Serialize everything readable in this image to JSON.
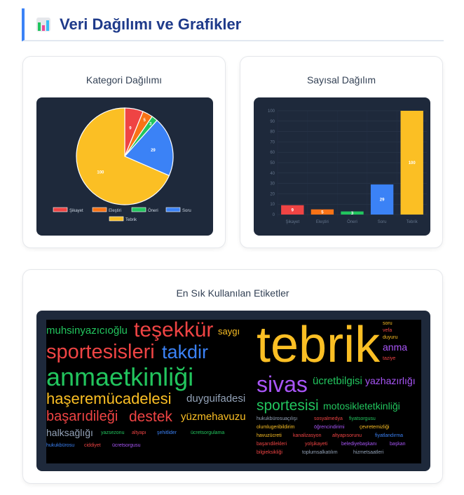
{
  "header": {
    "title": "Veri Dağılımı ve Grafikler",
    "icon": "bar-chart-icon"
  },
  "category_card": {
    "title": "Kategori Dağılımı"
  },
  "numeric_card": {
    "title": "Sayısal Dağılım"
  },
  "tags_card": {
    "title": "En Sık Kullanılan Etiketler"
  },
  "chart_data": [
    {
      "type": "pie",
      "categories": [
        "Şikayet",
        "Eleştiri",
        "Öneri",
        "Soru",
        "Tebrik"
      ],
      "values": [
        9,
        5,
        3,
        29,
        100
      ],
      "colors": [
        "#ef4444",
        "#f97316",
        "#22c55e",
        "#3b82f6",
        "#fbbf24"
      ],
      "legend": "bottom"
    },
    {
      "type": "bar",
      "categories": [
        "Şikayet",
        "Eleştiri",
        "Öneri",
        "Soru",
        "Tebrik"
      ],
      "values": [
        9,
        5,
        3,
        29,
        100
      ],
      "colors": [
        "#ef4444",
        "#f97316",
        "#22c55e",
        "#3b82f6",
        "#fbbf24"
      ],
      "ylim": [
        0,
        100
      ],
      "yticks": [
        0,
        10,
        20,
        30,
        40,
        50,
        60,
        70,
        80,
        90,
        100
      ],
      "grid": true
    }
  ],
  "word_cloud": [
    {
      "text": "tebrik",
      "color": "#fbbf24"
    },
    {
      "text": "anmaetkinliği",
      "color": "#22c55e"
    },
    {
      "text": "sportesisleri",
      "color": "#ef4444"
    },
    {
      "text": "teşekkür",
      "color": "#ef4444"
    },
    {
      "text": "sivas",
      "color": "#a855f7"
    },
    {
      "text": "takdir",
      "color": "#3b82f6"
    },
    {
      "text": "haşeremücadelesi",
      "color": "#fbbf24"
    },
    {
      "text": "sportesisi",
      "color": "#22c55e"
    },
    {
      "text": "destek",
      "color": "#ef4444"
    },
    {
      "text": "başarıdileği",
      "color": "#ef4444"
    },
    {
      "text": "muhsinyazıcıoğlu",
      "color": "#22c55e"
    },
    {
      "text": "yüzmehavuzu",
      "color": "#fbbf24"
    },
    {
      "text": "duyguifadesi",
      "color": "#94a3b8"
    },
    {
      "text": "ücretbilgisi",
      "color": "#22c55e"
    },
    {
      "text": "yazhazırlığı",
      "color": "#a855f7"
    },
    {
      "text": "motosikletetkinliği",
      "color": "#22c55e"
    },
    {
      "text": "halksağlığı",
      "color": "#94a3b8"
    },
    {
      "text": "anma",
      "color": "#a855f7"
    },
    {
      "text": "saygı",
      "color": "#fbbf24"
    },
    {
      "text": "yazsezonu",
      "color": "#22c55e"
    },
    {
      "text": "altyapı",
      "color": "#ef4444"
    },
    {
      "text": "hizmetsaatleri",
      "color": "#94a3b8"
    },
    {
      "text": "yolşikayeti",
      "color": "#ef4444"
    },
    {
      "text": "başarıdilekleri",
      "color": "#ef4444"
    },
    {
      "text": "çevretemizliği",
      "color": "#fbbf24"
    },
    {
      "text": "öğrencindirimi",
      "color": "#a855f7"
    },
    {
      "text": "şehitlider",
      "color": "#3b82f6"
    },
    {
      "text": "ücretsorgulama",
      "color": "#22c55e"
    },
    {
      "text": "vefa",
      "color": "#ef4444"
    },
    {
      "text": "hukukbürosu",
      "color": "#3b82f6"
    },
    {
      "text": "hukukbürosuaçılışı",
      "color": "#94a3b8"
    },
    {
      "text": "soru",
      "color": "#fbbf24"
    },
    {
      "text": "sosyalmedya",
      "color": "#ef4444"
    },
    {
      "text": "başkan",
      "color": "#a855f7"
    },
    {
      "text": "fiyatlandırma",
      "color": "#3b82f6"
    },
    {
      "text": "duyuru",
      "color": "#fbbf24"
    },
    {
      "text": "fiyatsorgusu",
      "color": "#22c55e"
    },
    {
      "text": "ücretsorgusu",
      "color": "#a855f7"
    },
    {
      "text": "belediyebaşkanı",
      "color": "#a855f7"
    },
    {
      "text": "ciddiyet",
      "color": "#ef4444"
    },
    {
      "text": "olumlugeribildirim",
      "color": "#fbbf24"
    },
    {
      "text": "taziye",
      "color": "#ef4444"
    },
    {
      "text": "havuzücreti",
      "color": "#fbbf24"
    },
    {
      "text": "toplumsalkatılım",
      "color": "#94a3b8"
    },
    {
      "text": "bilgieksikliği",
      "color": "#ef4444"
    },
    {
      "text": "altyapısorunu",
      "color": "#ef4444"
    },
    {
      "text": "kanalizasyon",
      "color": "#ef4444"
    }
  ]
}
